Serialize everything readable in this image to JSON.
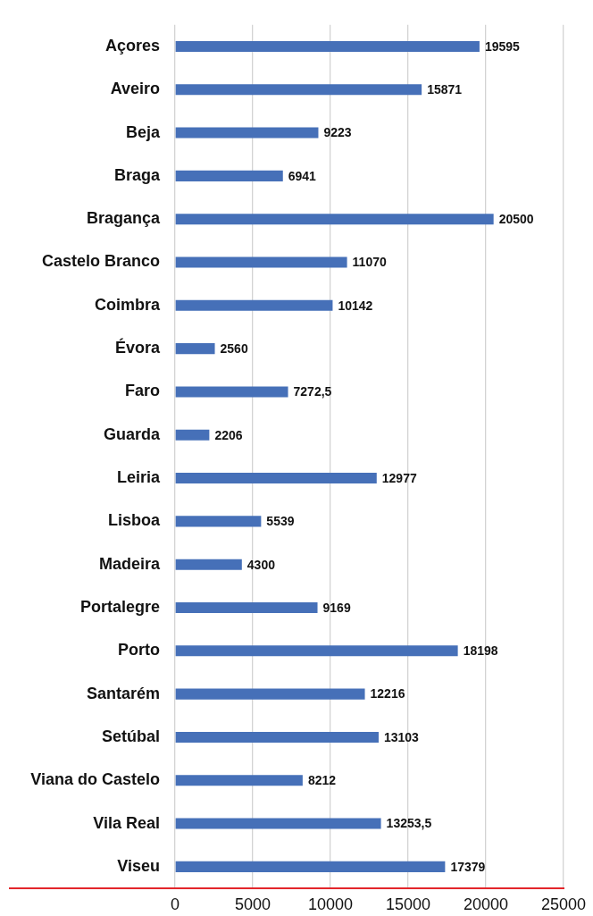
{
  "chart_data": {
    "type": "bar",
    "orientation": "horizontal",
    "categories": [
      "Açores",
      "Aveiro",
      "Beja",
      "Braga",
      "Bragança",
      "Castelo Branco",
      "Coimbra",
      "Évora",
      "Faro",
      "Guarda",
      "Leiria",
      "Lisboa",
      "Madeira",
      "Portalegre",
      "Porto",
      "Santarém",
      "Setúbal",
      "Viana do Castelo",
      "Vila Real",
      "Viseu"
    ],
    "values": [
      19595,
      15871,
      9223,
      6941,
      20500,
      11070,
      10142,
      2560,
      7272.5,
      2206,
      12977,
      5539,
      4300,
      9169,
      18198,
      12216,
      13103,
      8212,
      13253.5,
      17379
    ],
    "value_labels": [
      "19595",
      "15871",
      "9223",
      "6941",
      "20500",
      "11070",
      "10142",
      "2560",
      "7272,5",
      "2206",
      "12977",
      "5539",
      "4300",
      "9169",
      "18198",
      "12216",
      "13103",
      "8212",
      "13253,5",
      "17379"
    ],
    "color": "#4670b8",
    "xlim": [
      0,
      25000
    ],
    "xticks": [
      0,
      5000,
      10000,
      15000,
      20000,
      25000
    ],
    "grid": "x",
    "legend": false
  }
}
